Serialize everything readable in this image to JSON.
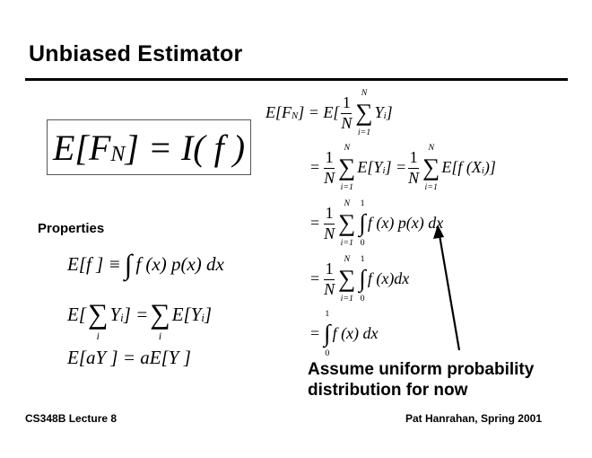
{
  "slide": {
    "title": "Unbiased Estimator",
    "properties_heading": "Properties",
    "caption_line1": "Assume uniform probability",
    "caption_line2": "distribution for now",
    "footer_left": "CS348B Lecture 8",
    "footer_right": "Pat Hanrahan, Spring 2001"
  },
  "sym": {
    "sum": "∑",
    "int": "∫",
    "one": "1",
    "zero": "0",
    "N": "N",
    "i1": "i=1",
    "i": "i",
    "eq": "="
  },
  "box": {
    "a": "E[F",
    "sub": "N",
    "b": "] = I(",
    "f": "f",
    "c": ")"
  },
  "props": {
    "p1": "E[f ] ≡",
    "p1b": "f (x) p(x) dx",
    "p2a": "E[",
    "p2b": "Y",
    "p2c": "] =",
    "p2d": "E[Y",
    "p2e": "]",
    "p3": "E[aY ] = aE[Y ]"
  },
  "derivation": {
    "l1a": "E[F",
    "l1b": "] = E[",
    "l1c": "Y",
    "l1d": "]",
    "l2a": "E[Y",
    "l2b": "] =",
    "l2c": "E[f (X",
    "l2d": ")]",
    "l3": "f (x) p(x) dx",
    "l4": "f (x)dx",
    "l5": "f (x) dx"
  }
}
